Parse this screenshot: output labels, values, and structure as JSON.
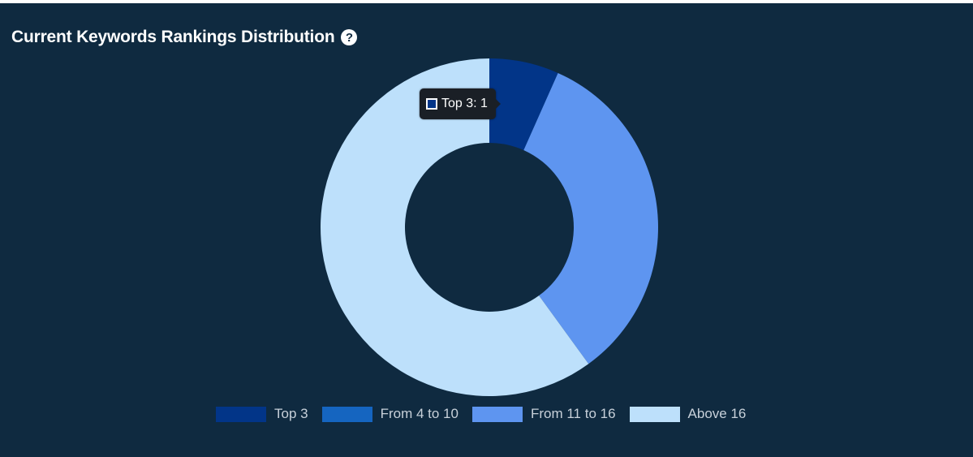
{
  "header": {
    "title": "Current Keywords Rankings Distribution",
    "help_icon": "question-circle-icon"
  },
  "tooltip": {
    "label": "Top 3",
    "value": "1",
    "text": "Top 3: 1",
    "color": "#023588"
  },
  "colors": {
    "background": "#0f2a40",
    "title": "#ffffff",
    "legend_text": "#c7d0d9"
  },
  "chart_data": {
    "type": "pie",
    "donut": true,
    "title": "Current Keywords Rankings Distribution",
    "categories": [
      "Top 3",
      "From 4 to 10",
      "From 11 to 16",
      "Above 16"
    ],
    "values": [
      1,
      0,
      5,
      9
    ],
    "colors": [
      "#023588",
      "#1565c0",
      "#5e95f0",
      "#bde0fb"
    ],
    "legend_position": "bottom"
  }
}
